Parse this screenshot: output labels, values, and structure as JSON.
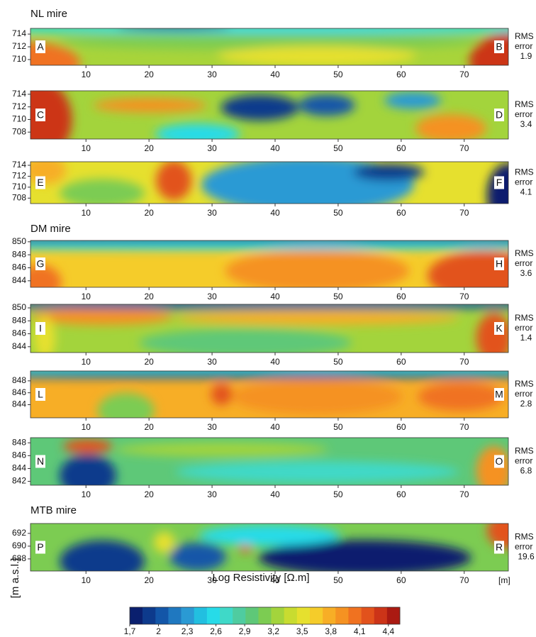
{
  "groups": [
    {
      "title": "NL mire",
      "panels": [
        {
          "left": "A",
          "right": "B",
          "rms": 1.9,
          "ylim": [
            709.1,
            714.9
          ],
          "yticks": [
            714,
            712,
            710
          ]
        },
        {
          "left": "C",
          "right": "D",
          "rms": 3.4,
          "ylim": [
            706.9,
            714.55
          ],
          "yticks": [
            714,
            712,
            710,
            708
          ]
        },
        {
          "left": "E",
          "right": "F",
          "rms": 4.1,
          "ylim": [
            707.0,
            714.65
          ],
          "yticks": [
            714,
            712,
            710,
            708
          ]
        }
      ]
    },
    {
      "title": "DM mire",
      "panels": [
        {
          "left": "G",
          "right": "H",
          "rms": 3.6,
          "ylim": [
            843.0,
            850.2
          ],
          "yticks": [
            850,
            848,
            846,
            844
          ]
        },
        {
          "left": "I",
          "right": "K",
          "rms": 1.4,
          "ylim": [
            843.1,
            850.55
          ],
          "yticks": [
            850,
            848,
            846,
            844
          ]
        },
        {
          "left": "L",
          "right": "M",
          "rms": 2.8,
          "ylim": [
            841.8,
            849.65
          ],
          "yticks": [
            848,
            846,
            844
          ]
        },
        {
          "left": "N",
          "right": "O",
          "rms": 6.8,
          "ylim": [
            841.4,
            848.8
          ],
          "yticks": [
            848,
            846,
            844,
            842
          ]
        }
      ]
    },
    {
      "title": "MTB mire",
      "panels": [
        {
          "left": "P",
          "right": "R",
          "rms": 19.6,
          "ylim": [
            686.1,
            693.55
          ],
          "yticks": [
            692,
            690,
            688
          ]
        }
      ]
    }
  ],
  "rms_label": [
    "RMS",
    "error"
  ],
  "xlim": [
    1.2,
    77
  ],
  "xticks": [
    10,
    20,
    30,
    40,
    50,
    60,
    70
  ],
  "x_unit": "[m]",
  "x_label": "Log Resistivity [Ω.m]",
  "y_label": "[m a.s.l.]",
  "colorbar": {
    "lim": [
      1.7,
      4.52
    ],
    "ticks": [
      {
        "value": 1.7,
        "label": "1,7"
      },
      2,
      {
        "value": 2.3,
        "label": "2,3"
      },
      {
        "value": 2.6,
        "label": "2,6"
      },
      {
        "value": 2.9,
        "label": "2,9"
      },
      {
        "value": 3.2,
        "label": "3,2"
      },
      {
        "value": 3.5,
        "label": "3,5"
      },
      {
        "value": 3.8,
        "label": "3,8"
      },
      {
        "value": 4.1,
        "label": "4,1"
      },
      {
        "value": 4.4,
        "label": "4,4"
      }
    ],
    "colors": [
      "#0a1f6e",
      "#0d3a8c",
      "#1356a8",
      "#1f78c0",
      "#2a9ad4",
      "#22bfe0",
      "#27dbe8",
      "#3fd9c8",
      "#4fcca0",
      "#5ec878",
      "#7ccc52",
      "#a3d43c",
      "#c8dc30",
      "#e6e02e",
      "#f5cc2a",
      "#f7ae26",
      "#f59222",
      "#f07220",
      "#e2521c",
      "#cc3418",
      "#aa1a12"
    ]
  }
}
